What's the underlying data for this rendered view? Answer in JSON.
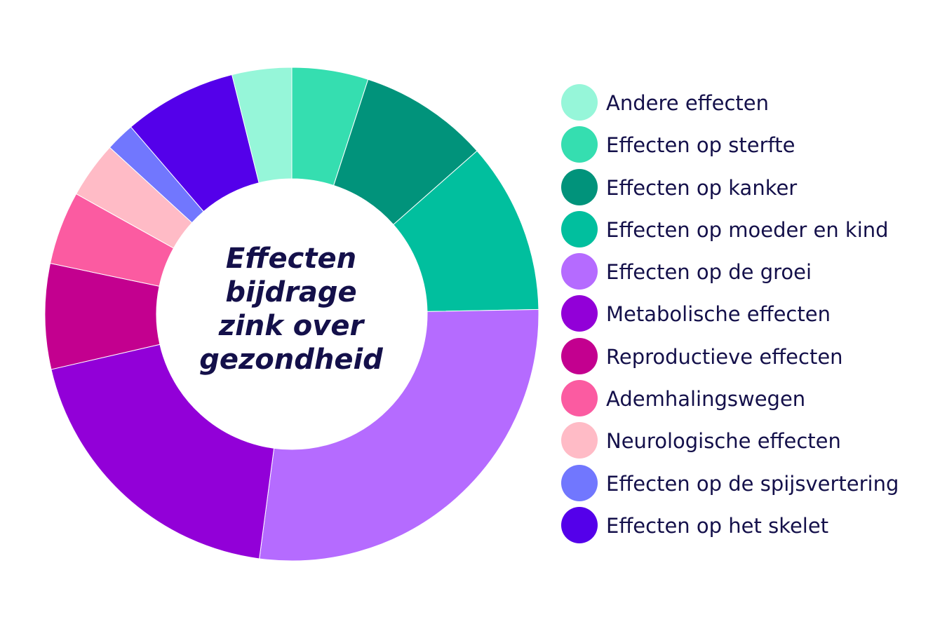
{
  "chart_data": {
    "type": "pie",
    "donut": true,
    "title_lines": [
      "Effecten",
      "bijdrage",
      "zink over",
      "gezondheid"
    ],
    "legend_position": "right",
    "start_angle_deg": 0,
    "direction": "clockwise",
    "slices": [
      {
        "label": "Effecten op sterfte",
        "value": 5.0,
        "color": "#35deb0"
      },
      {
        "label": "Effecten op kanker",
        "value": 8.5,
        "color": "#01937b"
      },
      {
        "label": "Effecten op moeder en kind",
        "value": 11.2,
        "color": "#01bf9e"
      },
      {
        "label": "Effecten op de groei",
        "value": 27.4,
        "color": "#b56bff"
      },
      {
        "label": "Metabolische effecten",
        "value": 19.3,
        "color": "#9200d8"
      },
      {
        "label": "Reproductieve effecten",
        "value": 6.9,
        "color": "#c3008f"
      },
      {
        "label": "Ademhalingswegen",
        "value": 4.8,
        "color": "#fb5ba1"
      },
      {
        "label": "Neurologische effecten",
        "value": 3.7,
        "color": "#ffbbc6"
      },
      {
        "label": "Effecten op de spijsvertering",
        "value": 1.9,
        "color": "#7177fe"
      },
      {
        "label": "Effecten op het skelet",
        "value": 7.4,
        "color": "#5400ea"
      },
      {
        "label": "Andere effecten",
        "value": 3.9,
        "color": "#96f6d9"
      }
    ],
    "legend": [
      {
        "label": "Andere effecten",
        "color": "#96f6d9"
      },
      {
        "label": "Effecten op sterfte",
        "color": "#35deb0"
      },
      {
        "label": "Effecten op kanker",
        "color": "#01937b"
      },
      {
        "label": "Effecten op moeder en kind",
        "color": "#01bf9e"
      },
      {
        "label": "Effecten op de groei",
        "color": "#b56bff"
      },
      {
        "label": "Metabolische effecten",
        "color": "#9200d8"
      },
      {
        "label": "Reproductieve effecten",
        "color": "#c3008f"
      },
      {
        "label": "Ademhalingswegen",
        "color": "#fb5ba1"
      },
      {
        "label": "Neurologische effecten",
        "color": "#ffbbc6"
      },
      {
        "label": "Effecten op de spijsvertering",
        "color": "#7177fe"
      },
      {
        "label": "Effecten op het skelet",
        "color": "#5400ea"
      }
    ]
  }
}
